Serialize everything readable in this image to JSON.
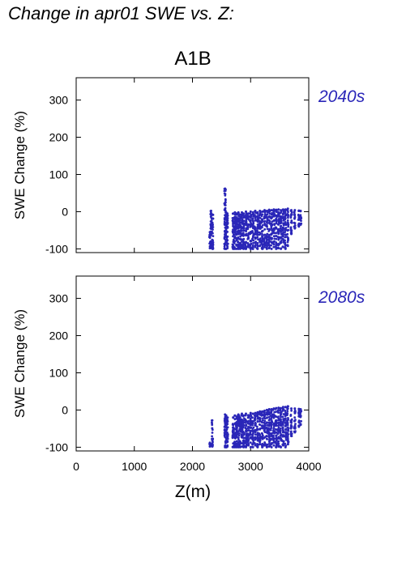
{
  "page": {
    "title": "Change in apr01 SWE vs. Z:"
  },
  "colors": {
    "points": "#2a26b8",
    "label": "#2a26b8",
    "axis": "#000000"
  },
  "chart_data": {
    "type": "scatter",
    "scenario_title": "A1B",
    "xlabel": "Z(m)",
    "xlim": [
      0,
      4000
    ],
    "x_ticks": [
      "0",
      "1000",
      "2000",
      "3000",
      "4000"
    ],
    "grid": false,
    "panels": [
      {
        "label": "2040s",
        "ylabel": "SWE Change (%)",
        "ylim": [
          -110,
          360
        ],
        "y_ticks": [
          "300",
          "200",
          "100",
          "0",
          "-100"
        ],
        "point_columns": [
          {
            "x": 2300,
            "ymin": -98,
            "ymax": -55
          },
          {
            "x": 2320,
            "ymin": -95,
            "ymax": 2
          },
          {
            "x": 2345,
            "ymin": -100,
            "ymax": -8
          },
          {
            "x": 2560,
            "ymin": -100,
            "ymax": 62
          },
          {
            "x": 2580,
            "ymin": -100,
            "ymax": -2
          },
          {
            "x": 2600,
            "ymin": -98,
            "ymax": -5
          },
          {
            "x": 2700,
            "ymin": -100,
            "ymax": -5
          },
          {
            "x": 2730,
            "ymin": -100,
            "ymax": -2
          },
          {
            "x": 2760,
            "ymin": -100,
            "ymax": -5
          },
          {
            "x": 2790,
            "ymin": -100,
            "ymax": -2
          },
          {
            "x": 2820,
            "ymin": -100,
            "ymax": -8
          },
          {
            "x": 2850,
            "ymin": -98,
            "ymax": -2
          },
          {
            "x": 2880,
            "ymin": -100,
            "ymax": -5
          },
          {
            "x": 2920,
            "ymin": -100,
            "ymax": 0
          },
          {
            "x": 2960,
            "ymin": -95,
            "ymax": -5
          },
          {
            "x": 3000,
            "ymin": -100,
            "ymax": 0
          },
          {
            "x": 3040,
            "ymin": -100,
            "ymax": -2
          },
          {
            "x": 3080,
            "ymin": -95,
            "ymax": 2
          },
          {
            "x": 3120,
            "ymin": -100,
            "ymax": -2
          },
          {
            "x": 3160,
            "ymin": -92,
            "ymax": 2
          },
          {
            "x": 3200,
            "ymin": -100,
            "ymax": 0
          },
          {
            "x": 3240,
            "ymin": -95,
            "ymax": 4
          },
          {
            "x": 3280,
            "ymin": -100,
            "ymax": 2
          },
          {
            "x": 3320,
            "ymin": -98,
            "ymax": 5
          },
          {
            "x": 3360,
            "ymin": -100,
            "ymax": 4
          },
          {
            "x": 3400,
            "ymin": -95,
            "ymax": 6
          },
          {
            "x": 3440,
            "ymin": -100,
            "ymax": 5
          },
          {
            "x": 3480,
            "ymin": -98,
            "ymax": 6
          },
          {
            "x": 3520,
            "ymin": -100,
            "ymax": 4
          },
          {
            "x": 3560,
            "ymin": -95,
            "ymax": 6
          },
          {
            "x": 3600,
            "ymin": -100,
            "ymax": 6
          },
          {
            "x": 3640,
            "ymin": -92,
            "ymax": 8
          },
          {
            "x": 3700,
            "ymin": -60,
            "ymax": 4
          },
          {
            "x": 3760,
            "ymin": -45,
            "ymax": 4
          },
          {
            "x": 3830,
            "ymin": -40,
            "ymax": 3
          },
          {
            "x": 3860,
            "ymin": -35,
            "ymax": 2
          }
        ]
      },
      {
        "label": "2080s",
        "ylabel": "SWE Change (%)",
        "ylim": [
          -110,
          360
        ],
        "y_ticks": [
          "300",
          "200",
          "100",
          "0",
          "-100"
        ],
        "point_columns": [
          {
            "x": 2300,
            "ymin": -98,
            "ymax": -88
          },
          {
            "x": 2340,
            "ymin": -98,
            "ymax": -28
          },
          {
            "x": 2560,
            "ymin": -100,
            "ymax": -12
          },
          {
            "x": 2580,
            "ymin": -100,
            "ymax": -15
          },
          {
            "x": 2600,
            "ymin": -98,
            "ymax": -20
          },
          {
            "x": 2700,
            "ymin": -100,
            "ymax": -20
          },
          {
            "x": 2730,
            "ymin": -100,
            "ymax": -15
          },
          {
            "x": 2760,
            "ymin": -100,
            "ymax": -18
          },
          {
            "x": 2790,
            "ymin": -100,
            "ymax": -12
          },
          {
            "x": 2820,
            "ymin": -100,
            "ymax": -20
          },
          {
            "x": 2850,
            "ymin": -98,
            "ymax": -10
          },
          {
            "x": 2880,
            "ymin": -100,
            "ymax": -15
          },
          {
            "x": 2920,
            "ymin": -100,
            "ymax": -10
          },
          {
            "x": 2960,
            "ymin": -95,
            "ymax": -14
          },
          {
            "x": 3000,
            "ymin": -100,
            "ymax": -8
          },
          {
            "x": 3040,
            "ymin": -100,
            "ymax": -10
          },
          {
            "x": 3080,
            "ymin": -95,
            "ymax": -8
          },
          {
            "x": 3120,
            "ymin": -100,
            "ymax": -6
          },
          {
            "x": 3160,
            "ymin": -92,
            "ymax": -4
          },
          {
            "x": 3200,
            "ymin": -100,
            "ymax": -4
          },
          {
            "x": 3240,
            "ymin": -95,
            "ymax": -2
          },
          {
            "x": 3280,
            "ymin": -100,
            "ymax": 0
          },
          {
            "x": 3320,
            "ymin": -98,
            "ymax": 2
          },
          {
            "x": 3360,
            "ymin": -100,
            "ymax": 2
          },
          {
            "x": 3400,
            "ymin": -95,
            "ymax": 4
          },
          {
            "x": 3440,
            "ymin": -100,
            "ymax": 5
          },
          {
            "x": 3480,
            "ymin": -98,
            "ymax": 6
          },
          {
            "x": 3520,
            "ymin": -100,
            "ymax": 5
          },
          {
            "x": 3560,
            "ymin": -95,
            "ymax": 8
          },
          {
            "x": 3600,
            "ymin": -100,
            "ymax": 8
          },
          {
            "x": 3640,
            "ymin": -92,
            "ymax": 10
          },
          {
            "x": 3700,
            "ymin": -70,
            "ymax": 4
          },
          {
            "x": 3760,
            "ymin": -60,
            "ymax": 4
          },
          {
            "x": 3830,
            "ymin": -45,
            "ymax": 3
          },
          {
            "x": 3860,
            "ymin": -40,
            "ymax": 2
          }
        ]
      }
    ]
  }
}
